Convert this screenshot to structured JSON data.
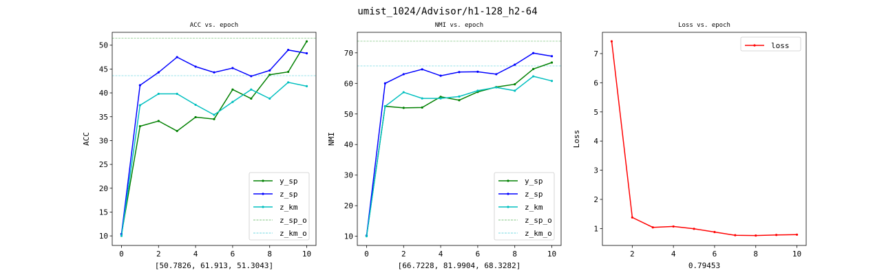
{
  "suptitle": "umist_1024/Advisor/h1-128_h2-64",
  "colors": {
    "y_sp": "#008000",
    "z_sp": "#0000ff",
    "z_km": "#00bfbf",
    "z_sp_o": "#2ca02c",
    "z_km_o": "#17becf",
    "loss": "#ff0000"
  },
  "chart_data": [
    {
      "type": "line",
      "title": "ACC vs. epoch",
      "xlabel": "[50.7826, 61.913, 51.3043]",
      "ylabel": "ACC",
      "xlim": [
        -0.5,
        10.5
      ],
      "ylim": [
        8.0,
        52.7
      ],
      "xticks": [
        0,
        2,
        4,
        6,
        8,
        10
      ],
      "yticks": [
        10,
        15,
        20,
        25,
        30,
        35,
        40,
        45,
        50
      ],
      "legend": "lower-right",
      "x": [
        0,
        1,
        2,
        3,
        4,
        5,
        6,
        7,
        8,
        9,
        10
      ],
      "series": [
        {
          "name": "y_sp",
          "color": "#008000",
          "values": [
            10.4,
            33.0,
            34.1,
            32.0,
            34.9,
            34.5,
            40.7,
            38.8,
            43.8,
            44.4,
            50.8
          ]
        },
        {
          "name": "z_sp",
          "color": "#0000ff",
          "values": [
            10.4,
            41.6,
            44.3,
            47.5,
            45.5,
            44.3,
            45.2,
            43.5,
            44.7,
            49.0,
            48.3
          ]
        },
        {
          "name": "z_km",
          "color": "#00bfbf",
          "values": [
            10.0,
            37.4,
            39.8,
            39.8,
            37.5,
            35.4,
            38.1,
            40.7,
            38.8,
            42.2,
            41.4
          ]
        }
      ],
      "hlines": [
        {
          "name": "z_sp_o",
          "color": "#2ca02c",
          "value": 51.5
        },
        {
          "name": "z_km_o",
          "color": "#17becf",
          "value": 43.6
        }
      ]
    },
    {
      "type": "line",
      "title": "NMI vs. epoch",
      "xlabel": "[66.7228, 81.9904, 68.3282]",
      "ylabel": "NMI",
      "xlim": [
        -0.5,
        10.5
      ],
      "ylim": [
        7.0,
        76.7
      ],
      "xticks": [
        0,
        2,
        4,
        6,
        8,
        10
      ],
      "yticks": [
        10,
        20,
        30,
        40,
        50,
        60,
        70
      ],
      "legend": "lower-right",
      "x": [
        0,
        1,
        2,
        3,
        4,
        5,
        6,
        7,
        8,
        9,
        10
      ],
      "series": [
        {
          "name": "y_sp",
          "color": "#008000",
          "values": [
            10.2,
            52.5,
            52.0,
            52.1,
            55.6,
            54.5,
            57.2,
            58.8,
            59.7,
            64.7,
            66.8
          ]
        },
        {
          "name": "z_sp",
          "color": "#0000ff",
          "values": [
            10.2,
            60.0,
            63.0,
            64.6,
            62.5,
            63.7,
            63.8,
            63.0,
            66.1,
            69.9,
            68.9
          ]
        },
        {
          "name": "z_km",
          "color": "#00bfbf",
          "values": [
            10.0,
            52.5,
            57.1,
            55.1,
            55.1,
            55.7,
            57.6,
            58.7,
            57.6,
            62.3,
            60.8
          ]
        }
      ],
      "hlines": [
        {
          "name": "z_sp_o",
          "color": "#2ca02c",
          "value": 73.8
        },
        {
          "name": "z_km_o",
          "color": "#17becf",
          "value": 65.7
        }
      ]
    },
    {
      "type": "line",
      "title": "Loss vs. epoch",
      "xlabel": "0.79453",
      "ylabel": "Loss",
      "xlim": [
        0.55,
        10.45
      ],
      "ylim": [
        0.42,
        7.73
      ],
      "xticks": [
        2,
        4,
        6,
        8,
        10
      ],
      "yticks": [
        1,
        2,
        3,
        4,
        5,
        6,
        7
      ],
      "legend": "top-right",
      "x": [
        1,
        2,
        3,
        4,
        5,
        6,
        7,
        8,
        9,
        10
      ],
      "series": [
        {
          "name": "loss",
          "color": "#ff0000",
          "values": [
            7.42,
            1.38,
            1.04,
            1.07,
            0.99,
            0.88,
            0.77,
            0.76,
            0.78,
            0.79
          ]
        }
      ],
      "hlines": []
    }
  ]
}
